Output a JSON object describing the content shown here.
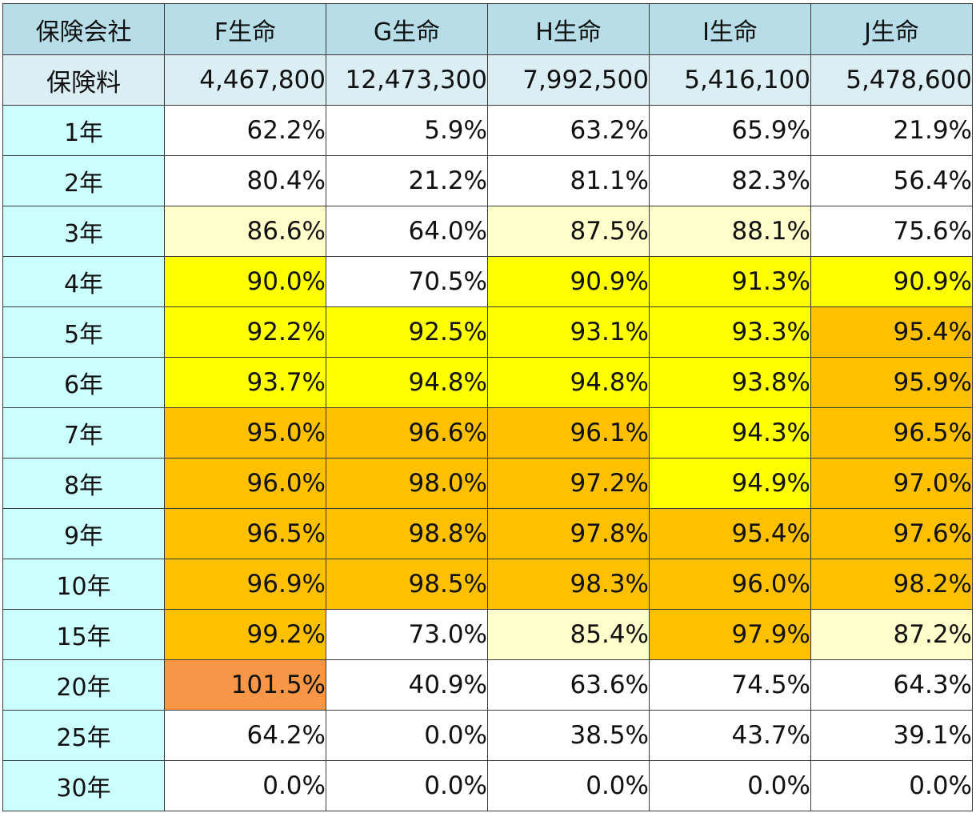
{
  "header": {
    "corner": "保険会社",
    "companies": [
      "F生命",
      "G生命",
      "H生命",
      "I生命",
      "J生命"
    ]
  },
  "premium": {
    "label": "保険料",
    "values": [
      "4,467,800",
      "12,473,300",
      "7,992,500",
      "5,416,100",
      "5,478,600"
    ]
  },
  "colors": {
    "header_bg": "#b7dde8",
    "premium_bg": "#daeef3",
    "year_bg": "#ccffff",
    "white": "#ffffff",
    "light_yellow": "#ffffcc",
    "yellow": "#ffff00",
    "orange": "#ffc000",
    "dark_orange": "#f79646"
  },
  "rows": [
    {
      "year": "1年",
      "values": [
        "62.2%",
        "5.9%",
        "63.2%",
        "65.9%",
        "21.9%"
      ],
      "fills": [
        "white",
        "white",
        "white",
        "white",
        "white"
      ]
    },
    {
      "year": "2年",
      "values": [
        "80.4%",
        "21.2%",
        "81.1%",
        "82.3%",
        "56.4%"
      ],
      "fills": [
        "white",
        "white",
        "white",
        "white",
        "white"
      ]
    },
    {
      "year": "3年",
      "values": [
        "86.6%",
        "64.0%",
        "87.5%",
        "88.1%",
        "75.6%"
      ],
      "fills": [
        "light_yellow",
        "white",
        "light_yellow",
        "light_yellow",
        "white"
      ]
    },
    {
      "year": "4年",
      "values": [
        "90.0%",
        "70.5%",
        "90.9%",
        "91.3%",
        "90.9%"
      ],
      "fills": [
        "yellow",
        "white",
        "yellow",
        "yellow",
        "yellow"
      ]
    },
    {
      "year": "5年",
      "values": [
        "92.2%",
        "92.5%",
        "93.1%",
        "93.3%",
        "95.4%"
      ],
      "fills": [
        "yellow",
        "yellow",
        "yellow",
        "yellow",
        "orange"
      ]
    },
    {
      "year": "6年",
      "values": [
        "93.7%",
        "94.8%",
        "94.8%",
        "93.8%",
        "95.9%"
      ],
      "fills": [
        "yellow",
        "yellow",
        "yellow",
        "yellow",
        "orange"
      ]
    },
    {
      "year": "7年",
      "values": [
        "95.0%",
        "96.6%",
        "96.1%",
        "94.3%",
        "96.5%"
      ],
      "fills": [
        "orange",
        "orange",
        "orange",
        "yellow",
        "orange"
      ]
    },
    {
      "year": "8年",
      "values": [
        "96.0%",
        "98.0%",
        "97.2%",
        "94.9%",
        "97.0%"
      ],
      "fills": [
        "orange",
        "orange",
        "orange",
        "yellow",
        "orange"
      ]
    },
    {
      "year": "9年",
      "values": [
        "96.5%",
        "98.8%",
        "97.8%",
        "95.4%",
        "97.6%"
      ],
      "fills": [
        "orange",
        "orange",
        "orange",
        "orange",
        "orange"
      ]
    },
    {
      "year": "10年",
      "values": [
        "96.9%",
        "98.5%",
        "98.3%",
        "96.0%",
        "98.2%"
      ],
      "fills": [
        "orange",
        "orange",
        "orange",
        "orange",
        "orange"
      ]
    },
    {
      "year": "15年",
      "values": [
        "99.2%",
        "73.0%",
        "85.4%",
        "97.9%",
        "87.2%"
      ],
      "fills": [
        "orange",
        "white",
        "light_yellow",
        "orange",
        "light_yellow"
      ]
    },
    {
      "year": "20年",
      "values": [
        "101.5%",
        "40.9%",
        "63.6%",
        "74.5%",
        "64.3%"
      ],
      "fills": [
        "dark_orange",
        "white",
        "white",
        "white",
        "white"
      ]
    },
    {
      "year": "25年",
      "values": [
        "64.2%",
        "0.0%",
        "38.5%",
        "43.7%",
        "39.1%"
      ],
      "fills": [
        "white",
        "white",
        "white",
        "white",
        "white"
      ]
    },
    {
      "year": "30年",
      "values": [
        "0.0%",
        "0.0%",
        "0.0%",
        "0.0%",
        "0.0%"
      ],
      "fills": [
        "white",
        "white",
        "white",
        "white",
        "white"
      ]
    }
  ]
}
